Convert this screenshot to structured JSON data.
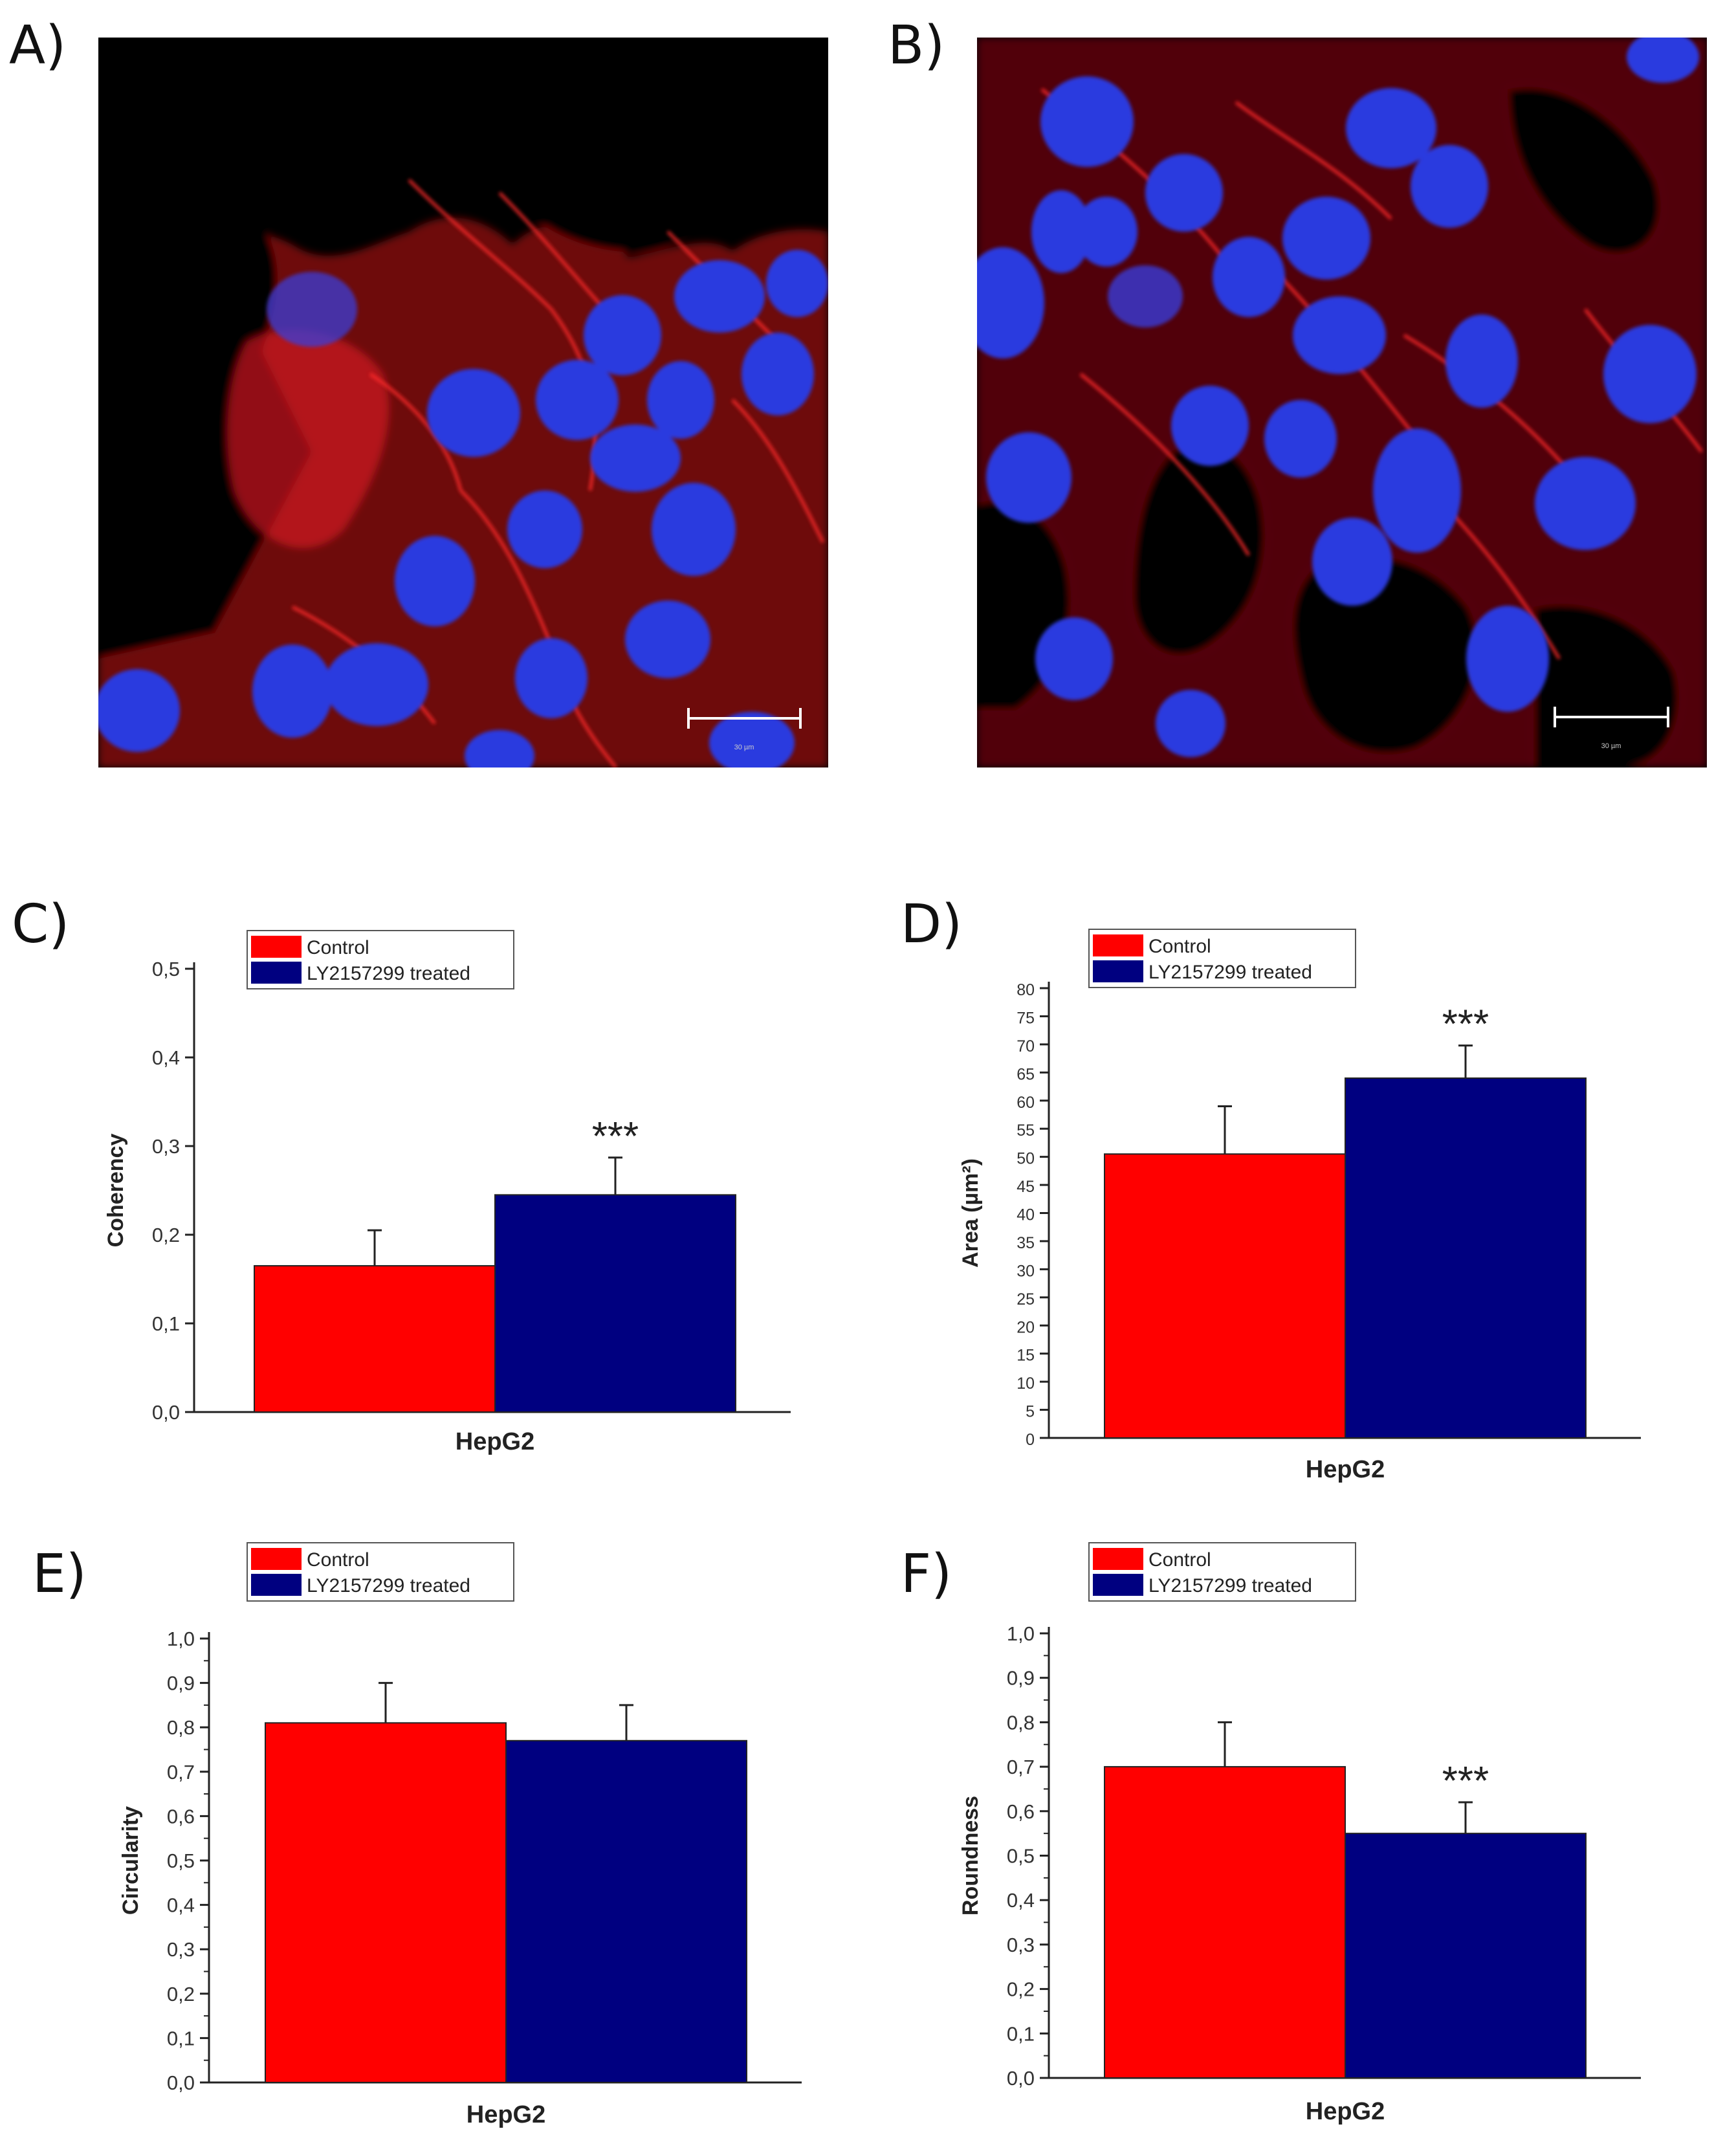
{
  "panel_labels": {
    "a": "A)",
    "b": "B)",
    "c": "C)",
    "d": "D)",
    "e": "E)",
    "f": "F)"
  },
  "micrographs": [
    {
      "id": "A",
      "scale_bar_label": "30 µm",
      "stain_colors": {
        "actin": "#ff2020",
        "nuclei": "#2a3adf"
      }
    },
    {
      "id": "B",
      "scale_bar_label": "30 µm",
      "stain_colors": {
        "actin": "#ff2020",
        "nuclei": "#2a3adf"
      }
    }
  ],
  "legend": {
    "control": "Control",
    "treated": "LY2157299 treated"
  },
  "colors": {
    "control": "#ff0000",
    "treated": "#000080"
  },
  "chart_data": [
    {
      "panel": "C",
      "type": "bar",
      "categories": [
        "HepG2"
      ],
      "xlabel": "HepG2",
      "ylabel": "Coherency",
      "ylim": [
        0,
        0.5
      ],
      "yticks": [
        "0,0",
        "0,1",
        "0,2",
        "0,3",
        "0,4",
        "0,5"
      ],
      "minor_ticks": false,
      "series": [
        {
          "name": "Control",
          "values": [
            0.165
          ],
          "error": [
            0.04
          ]
        },
        {
          "name": "LY2157299 treated",
          "values": [
            0.245
          ],
          "error": [
            0.042
          ]
        }
      ],
      "significance": {
        "series": "LY2157299 treated",
        "label": "***"
      }
    },
    {
      "panel": "D",
      "type": "bar",
      "categories": [
        "HepG2"
      ],
      "xlabel": "HepG2",
      "ylabel": "Area (µm²)",
      "ylim": [
        0,
        80
      ],
      "yticks": [
        "0",
        "5",
        "10",
        "15",
        "20",
        "25",
        "30",
        "35",
        "40",
        "45",
        "50",
        "55",
        "60",
        "65",
        "70",
        "75",
        "80"
      ],
      "minor_ticks": false,
      "series": [
        {
          "name": "Control",
          "values": [
            50.5
          ],
          "error": [
            8.5
          ]
        },
        {
          "name": "LY2157299 treated",
          "values": [
            64
          ],
          "error": [
            5.8
          ]
        }
      ],
      "significance": {
        "series": "LY2157299 treated",
        "label": "***"
      }
    },
    {
      "panel": "E",
      "type": "bar",
      "categories": [
        "HepG2"
      ],
      "xlabel": "HepG2",
      "ylabel": "Circularity",
      "ylim": [
        0,
        1.0
      ],
      "yticks": [
        "0,0",
        "0,1",
        "0,2",
        "0,3",
        "0,4",
        "0,5",
        "0,6",
        "0,7",
        "0,8",
        "0,9",
        "1,0"
      ],
      "minor_ticks": true,
      "series": [
        {
          "name": "Control",
          "values": [
            0.81
          ],
          "error": [
            0.09
          ]
        },
        {
          "name": "LY2157299 treated",
          "values": [
            0.77
          ],
          "error": [
            0.08
          ]
        }
      ],
      "significance": null
    },
    {
      "panel": "F",
      "type": "bar",
      "categories": [
        "HepG2"
      ],
      "xlabel": "HepG2",
      "ylabel": "Roundness",
      "ylim": [
        0,
        1.0
      ],
      "yticks": [
        "0,0",
        "0,1",
        "0,2",
        "0,3",
        "0,4",
        "0,5",
        "0,6",
        "0,7",
        "0,8",
        "0,9",
        "1,0"
      ],
      "minor_ticks": true,
      "series": [
        {
          "name": "Control",
          "values": [
            0.7
          ],
          "error": [
            0.1
          ]
        },
        {
          "name": "LY2157299 treated",
          "values": [
            0.55
          ],
          "error": [
            0.07
          ]
        }
      ],
      "significance": {
        "series": "LY2157299 treated",
        "label": "***"
      }
    }
  ]
}
